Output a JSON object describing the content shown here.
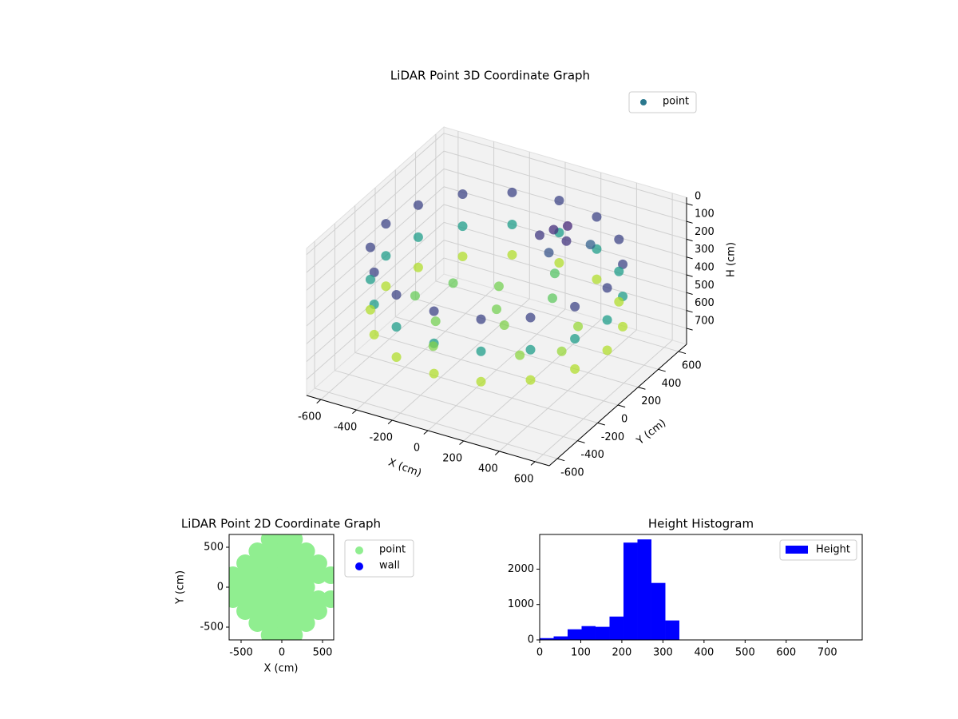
{
  "chart_data": [
    {
      "type": "scatter3d",
      "title": "LiDAR Point 3D Coordinate Graph",
      "xlabel": "X (cm)",
      "ylabel": "Y (cm)",
      "zlabel": "H (cm)",
      "xlim": [
        -680,
        680
      ],
      "ylim": [
        -680,
        680
      ],
      "zlim": [
        790,
        -35
      ],
      "xticks": [
        -600,
        -400,
        -200,
        0,
        200,
        400,
        600
      ],
      "yticks": [
        -600,
        -400,
        -200,
        0,
        200,
        400,
        600
      ],
      "zticks": [
        0,
        100,
        200,
        300,
        400,
        500,
        600,
        700
      ],
      "colormap": "viridis",
      "clim": [
        40,
        560
      ],
      "legend": "upper right",
      "series": [
        {
          "name": "point",
          "color": "#2a788e",
          "x": [
            620,
            573,
            438,
            237,
            0,
            -237,
            -438,
            -573,
            -620,
            -573,
            -438,
            -237,
            0,
            237,
            438,
            573,
            620,
            573,
            438,
            237,
            0,
            -237,
            -438,
            -573,
            -620,
            -573,
            -438,
            -237,
            0,
            237,
            438,
            573,
            620,
            573,
            438,
            237,
            0,
            -237,
            -438,
            -573,
            -620,
            -573,
            -438,
            -237,
            0,
            237,
            438,
            573,
            -300,
            -100,
            100,
            -200,
            200,
            300,
            0,
            -400,
            400,
            100,
            -100,
            450,
            150,
            200,
            100,
            250,
            180,
            300
          ],
          "y": [
            0,
            237,
            438,
            573,
            620,
            573,
            438,
            237,
            0,
            -237,
            -438,
            -573,
            -620,
            -573,
            -438,
            -237,
            0,
            237,
            438,
            573,
            620,
            573,
            438,
            237,
            0,
            -237,
            -438,
            -573,
            -620,
            -573,
            -438,
            -237,
            0,
            237,
            438,
            573,
            620,
            573,
            438,
            237,
            0,
            -237,
            -438,
            -573,
            -620,
            -573,
            -438,
            -237,
            100,
            200,
            -100,
            -250,
            200,
            -300,
            0,
            -100,
            100,
            400,
            -450,
            -150,
            300,
            350,
            250,
            250,
            200,
            400
          ],
          "z": [
            150,
            150,
            150,
            150,
            150,
            150,
            150,
            150,
            150,
            150,
            150,
            150,
            150,
            150,
            150,
            150,
            330,
            330,
            330,
            330,
            330,
            330,
            330,
            330,
            330,
            330,
            330,
            330,
            330,
            330,
            330,
            330,
            500,
            500,
            500,
            500,
            500,
            500,
            500,
            500,
            500,
            500,
            500,
            500,
            500,
            500,
            500,
            500,
            440,
            450,
            460,
            450,
            430,
            470,
            450,
            440,
            480,
            420,
            460,
            480,
            110,
            100,
            130,
            120,
            180,
            200
          ]
        }
      ]
    },
    {
      "type": "scatter",
      "title": "LiDAR Point 2D Coordinate Graph",
      "xlabel": "X (cm)",
      "ylabel": "Y (cm)",
      "xlim": [
        -647,
        637
      ],
      "ylim": [
        -660,
        660
      ],
      "xticks": [
        -500,
        0,
        500
      ],
      "yticks": [
        -500,
        0,
        500
      ],
      "legend": "outside right",
      "series": [
        {
          "name": "point",
          "color": "#90ee90",
          "x": [
            -150,
            0,
            150,
            -300,
            -150,
            0,
            150,
            300,
            -450,
            -300,
            -150,
            0,
            150,
            300,
            450,
            -600,
            -450,
            -300,
            -150,
            0,
            150,
            300,
            450,
            600,
            -600,
            -450,
            -300,
            -150,
            0,
            150,
            300,
            -600,
            -450,
            -300,
            -150,
            0,
            150,
            300,
            450,
            600,
            -450,
            -300,
            -150,
            0,
            150,
            300,
            450,
            -300,
            -150,
            0,
            150,
            300,
            -150,
            0,
            150
          ],
          "y": [
            600,
            600,
            600,
            450,
            450,
            450,
            450,
            450,
            300,
            300,
            300,
            300,
            300,
            300,
            300,
            150,
            150,
            150,
            150,
            150,
            150,
            150,
            150,
            150,
            0,
            0,
            0,
            0,
            0,
            0,
            0,
            -150,
            -150,
            -150,
            -150,
            -150,
            -150,
            -150,
            -150,
            -150,
            -300,
            -300,
            -300,
            -300,
            -300,
            -300,
            -300,
            -450,
            -450,
            -450,
            -450,
            -450,
            -600,
            -600,
            -600
          ]
        },
        {
          "name": "wall",
          "color": "#0000ff",
          "x": [],
          "y": []
        }
      ]
    },
    {
      "type": "histogram",
      "title": "Height Histogram",
      "xlim": [
        0,
        785
      ],
      "ylim": [
        0,
        2980
      ],
      "xticks": [
        0,
        100,
        200,
        300,
        400,
        500,
        600,
        700
      ],
      "yticks": [
        0,
        1000,
        2000
      ],
      "legend": "upper right",
      "name": "Height",
      "color": "#0000ff",
      "bins": [
        0,
        34,
        68,
        102,
        136,
        170,
        204,
        238,
        272,
        306,
        340,
        374,
        408,
        442,
        476,
        510,
        544,
        578,
        612,
        646,
        680,
        714,
        748
      ],
      "values": [
        50,
        100,
        300,
        390,
        370,
        660,
        2750,
        2840,
        1610,
        550,
        0,
        0,
        0,
        0,
        0,
        0,
        0,
        0,
        0,
        0,
        0,
        0
      ]
    }
  ]
}
